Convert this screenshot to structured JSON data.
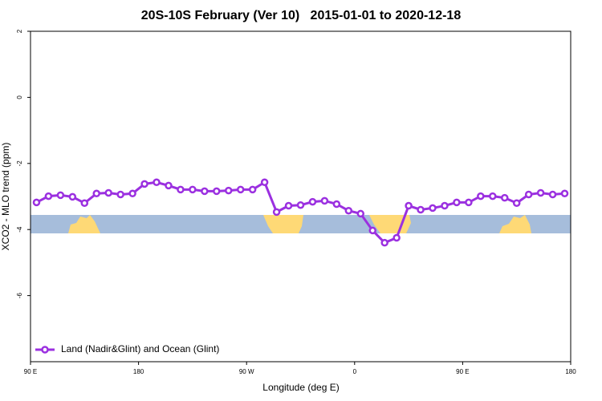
{
  "chart_data": {
    "type": "line",
    "title": "20S-10S February (Ver 10)   2015-01-01 to 2020-12-18",
    "xlabel": "Longitude (deg E)",
    "ylabel": "XCO2 - MLO trend (ppm)",
    "xlim": [
      90,
      540
    ],
    "ylim": [
      -8,
      2
    ],
    "xticks": [
      {
        "value": 90,
        "label": "90 E"
      },
      {
        "value": 180,
        "label": "180"
      },
      {
        "value": 270,
        "label": "90 W"
      },
      {
        "value": 360,
        "label": "0"
      },
      {
        "value": 450,
        "label": "90 E"
      },
      {
        "value": 540,
        "label": "180"
      }
    ],
    "yticks": [
      -6,
      -4,
      -2,
      0,
      2
    ],
    "legend": "bottom-left",
    "x": [
      95,
      105,
      115,
      125,
      135,
      145,
      155,
      165,
      175,
      185,
      195,
      205,
      215,
      225,
      235,
      245,
      255,
      265,
      275,
      285,
      295,
      305,
      315,
      325,
      335,
      345,
      355,
      365,
      375,
      385,
      395,
      405,
      415,
      425,
      435,
      445,
      455,
      465,
      475,
      485,
      495,
      505,
      515,
      525,
      535
    ],
    "series": [
      {
        "name": "Land (Nadir&Glint) and Ocean (Glint)",
        "color": "#9b30e0",
        "values": [
          -3.18,
          -2.99,
          -2.96,
          -3.01,
          -3.2,
          -2.91,
          -2.89,
          -2.94,
          -2.91,
          -2.62,
          -2.57,
          -2.67,
          -2.79,
          -2.79,
          -2.84,
          -2.84,
          -2.82,
          -2.79,
          -2.79,
          -2.57,
          -3.47,
          -3.28,
          -3.26,
          -3.16,
          -3.13,
          -3.23,
          -3.43,
          -3.52,
          -4.03,
          -4.4,
          -4.25,
          -3.28,
          -3.4,
          -3.35,
          -3.28,
          -3.18,
          -3.18,
          -2.99,
          -2.99,
          -3.04,
          -3.2,
          -2.94,
          -2.89,
          -2.94,
          -2.91
        ]
      }
    ]
  }
}
